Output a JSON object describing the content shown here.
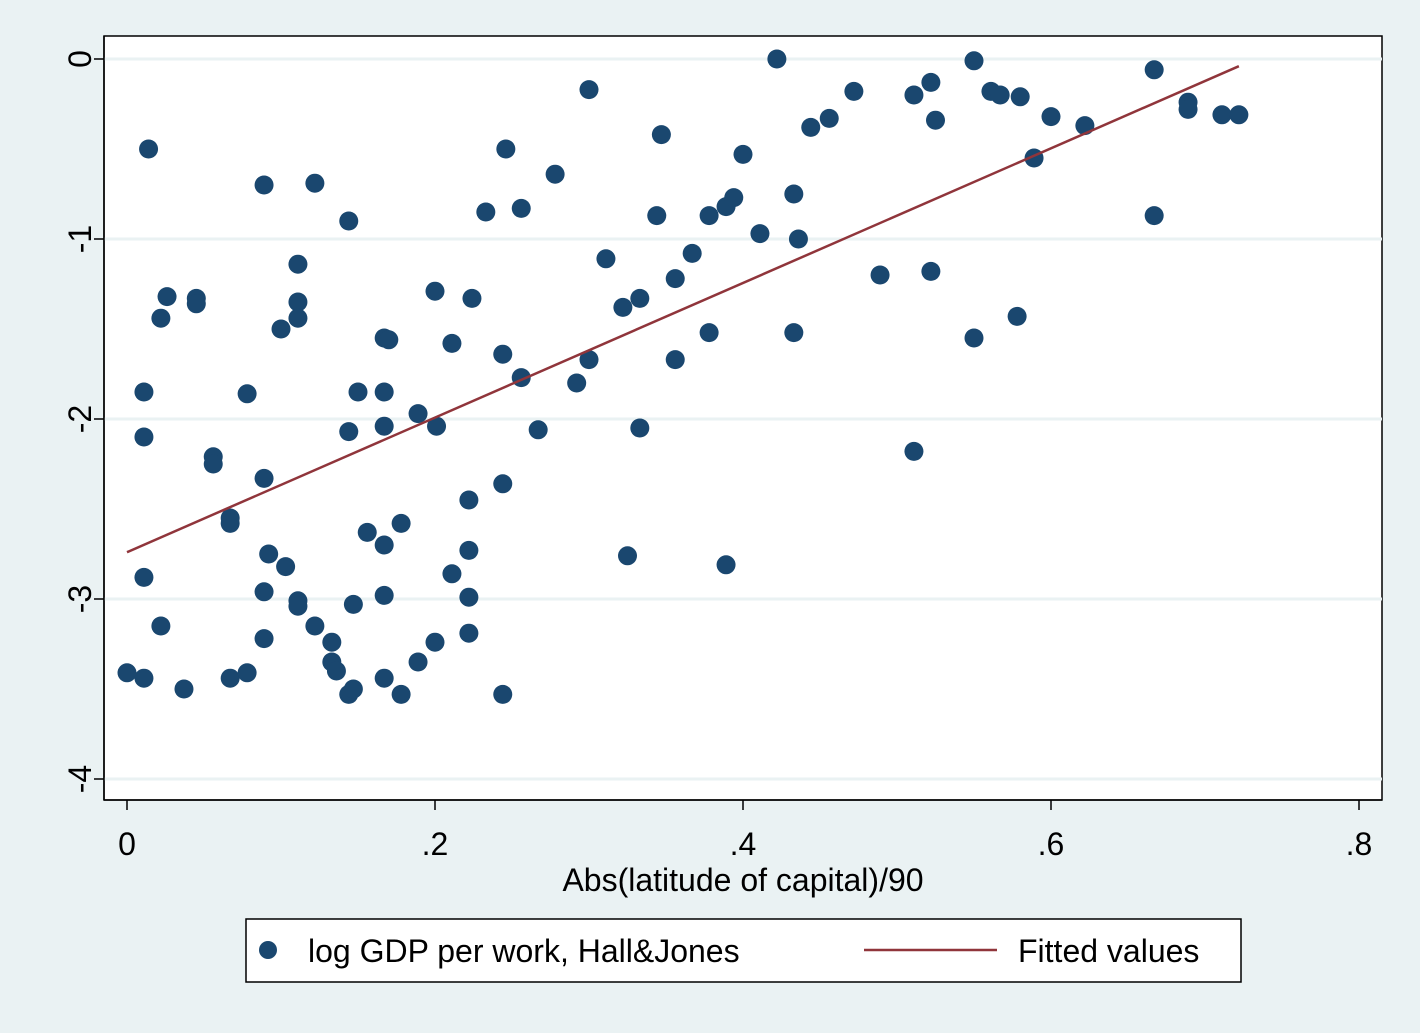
{
  "chart_data": {
    "type": "scatter",
    "xlabel": "Abs(latitude of capital)/90",
    "ylabel": "",
    "xlim": [
      0,
      0.8
    ],
    "ylim": [
      -4,
      0
    ],
    "x_ticks": [
      "0",
      ".2",
      ".4",
      ".6",
      ".8"
    ],
    "y_ticks": [
      "0",
      "-1",
      "-2",
      "-3",
      "-4"
    ],
    "grid": "horizontal",
    "legend_position": "bottom",
    "colors": {
      "background": "#eaf2f3",
      "plot_area": "#ffffff",
      "points": "#1a476f",
      "fit_line": "#90353b",
      "grid": "#eaf2f3"
    },
    "series": [
      {
        "name": "log GDP per work, Hall&Jones",
        "kind": "scatter",
        "points": [
          [
            0.0,
            -3.41
          ],
          [
            0.011,
            -3.44
          ],
          [
            0.011,
            -2.88
          ],
          [
            0.011,
            -2.1
          ],
          [
            0.011,
            -1.85
          ],
          [
            0.014,
            -0.5
          ],
          [
            0.022,
            -1.44
          ],
          [
            0.022,
            -3.15
          ],
          [
            0.026,
            -1.32
          ],
          [
            0.037,
            -3.5
          ],
          [
            0.045,
            -1.33
          ],
          [
            0.045,
            -1.36
          ],
          [
            0.056,
            -2.21
          ],
          [
            0.056,
            -2.25
          ],
          [
            0.067,
            -2.55
          ],
          [
            0.067,
            -2.58
          ],
          [
            0.067,
            -3.44
          ],
          [
            0.078,
            -1.86
          ],
          [
            0.078,
            -3.41
          ],
          [
            0.089,
            -0.7
          ],
          [
            0.089,
            -2.33
          ],
          [
            0.089,
            -2.96
          ],
          [
            0.089,
            -3.22
          ],
          [
            0.092,
            -2.75
          ],
          [
            0.1,
            -1.5
          ],
          [
            0.103,
            -2.82
          ],
          [
            0.111,
            -1.14
          ],
          [
            0.111,
            -1.35
          ],
          [
            0.111,
            -1.44
          ],
          [
            0.111,
            -3.01
          ],
          [
            0.111,
            -3.04
          ],
          [
            0.122,
            -0.69
          ],
          [
            0.122,
            -3.15
          ],
          [
            0.133,
            -3.24
          ],
          [
            0.133,
            -3.35
          ],
          [
            0.136,
            -3.4
          ],
          [
            0.144,
            -0.9
          ],
          [
            0.144,
            -2.07
          ],
          [
            0.144,
            -3.53
          ],
          [
            0.147,
            -3.03
          ],
          [
            0.147,
            -3.5
          ],
          [
            0.15,
            -1.85
          ],
          [
            0.156,
            -2.63
          ],
          [
            0.167,
            -1.55
          ],
          [
            0.167,
            -1.85
          ],
          [
            0.167,
            -2.04
          ],
          [
            0.167,
            -2.7
          ],
          [
            0.167,
            -2.98
          ],
          [
            0.167,
            -3.44
          ],
          [
            0.17,
            -1.56
          ],
          [
            0.178,
            -2.58
          ],
          [
            0.178,
            -3.53
          ],
          [
            0.189,
            -1.97
          ],
          [
            0.189,
            -3.35
          ],
          [
            0.2,
            -1.29
          ],
          [
            0.2,
            -3.24
          ],
          [
            0.201,
            -2.04
          ],
          [
            0.211,
            -1.58
          ],
          [
            0.211,
            -2.86
          ],
          [
            0.222,
            -2.45
          ],
          [
            0.222,
            -2.73
          ],
          [
            0.222,
            -2.99
          ],
          [
            0.222,
            -3.19
          ],
          [
            0.224,
            -1.33
          ],
          [
            0.233,
            -0.85
          ],
          [
            0.244,
            -1.64
          ],
          [
            0.244,
            -2.36
          ],
          [
            0.244,
            -3.53
          ],
          [
            0.246,
            -0.5
          ],
          [
            0.256,
            -0.83
          ],
          [
            0.256,
            -1.77
          ],
          [
            0.267,
            -2.06
          ],
          [
            0.278,
            -0.64
          ],
          [
            0.292,
            -1.8
          ],
          [
            0.3,
            -0.17
          ],
          [
            0.3,
            -1.67
          ],
          [
            0.311,
            -1.11
          ],
          [
            0.322,
            -1.38
          ],
          [
            0.325,
            -2.76
          ],
          [
            0.333,
            -1.33
          ],
          [
            0.333,
            -2.05
          ],
          [
            0.344,
            -0.87
          ],
          [
            0.347,
            -0.42
          ],
          [
            0.356,
            -1.22
          ],
          [
            0.356,
            -1.67
          ],
          [
            0.367,
            -1.08
          ],
          [
            0.378,
            -0.87
          ],
          [
            0.378,
            -1.52
          ],
          [
            0.389,
            -0.82
          ],
          [
            0.389,
            -2.81
          ],
          [
            0.394,
            -0.77
          ],
          [
            0.4,
            -0.53
          ],
          [
            0.411,
            -0.97
          ],
          [
            0.422,
            0.0
          ],
          [
            0.433,
            -0.75
          ],
          [
            0.433,
            -1.52
          ],
          [
            0.436,
            -1.0
          ],
          [
            0.444,
            -0.38
          ],
          [
            0.456,
            -0.33
          ],
          [
            0.472,
            -0.18
          ],
          [
            0.489,
            -1.2
          ],
          [
            0.511,
            -0.2
          ],
          [
            0.511,
            -2.18
          ],
          [
            0.522,
            -0.13
          ],
          [
            0.522,
            -1.18
          ],
          [
            0.525,
            -0.34
          ],
          [
            0.55,
            -0.01
          ],
          [
            0.55,
            -1.55
          ],
          [
            0.561,
            -0.18
          ],
          [
            0.567,
            -0.2
          ],
          [
            0.578,
            -1.43
          ],
          [
            0.58,
            -0.21
          ],
          [
            0.589,
            -0.55
          ],
          [
            0.6,
            -0.32
          ],
          [
            0.622,
            -0.37
          ],
          [
            0.667,
            -0.06
          ],
          [
            0.667,
            -0.87
          ],
          [
            0.689,
            -0.24
          ],
          [
            0.689,
            -0.28
          ],
          [
            0.711,
            -0.31
          ],
          [
            0.722,
            -0.31
          ]
        ]
      },
      {
        "name": "Fitted values",
        "kind": "line",
        "points": [
          [
            0.0,
            -2.74
          ],
          [
            0.722,
            -0.04
          ]
        ]
      }
    ]
  }
}
